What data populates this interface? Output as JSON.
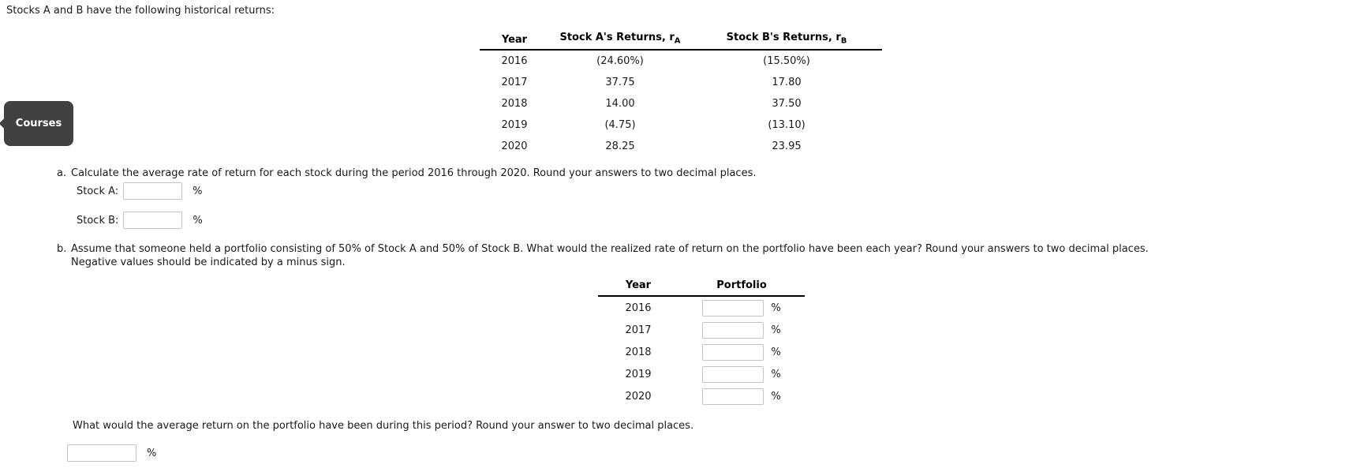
{
  "page": {
    "title": "Stocks A and B have the following historical returns:"
  },
  "courses_tab": {
    "label": "Courses"
  },
  "symbols": {
    "percent": "%"
  },
  "returns_table": {
    "headers": {
      "year": "Year",
      "stock_a_text": "Stock A's Returns, r",
      "stock_a_sub": "A",
      "stock_b_text": "Stock B's Returns, r",
      "stock_b_sub": "B"
    },
    "rows": [
      {
        "year": "2016",
        "a": "(24.60%)",
        "b": "(15.50%)"
      },
      {
        "year": "2017",
        "a": "37.75",
        "b": "17.80"
      },
      {
        "year": "2018",
        "a": "14.00",
        "b": "37.50"
      },
      {
        "year": "2019",
        "a": "(4.75)",
        "b": "(13.10)"
      },
      {
        "year": "2020",
        "a": "28.25",
        "b": "23.95"
      }
    ]
  },
  "part_a": {
    "marker": "a.",
    "prompt": "Calculate the average rate of return for each stock during the period 2016 through 2020. Round your answers to two decimal places.",
    "stock_a_label": "Stock A:",
    "stock_a_value": "",
    "stock_b_label": "Stock B:",
    "stock_b_value": ""
  },
  "part_b": {
    "marker": "b.",
    "prompt_line1": "Assume that someone held a portfolio consisting of 50% of Stock A and 50% of Stock B. What would the realized rate of return on the portfolio have been each year? Round your answers to two decimal places.",
    "prompt_line2": "Negative values should be indicated by a minus sign.",
    "portfolio_table": {
      "headers": {
        "year": "Year",
        "portfolio": "Portfolio"
      },
      "rows": [
        {
          "year": "2016",
          "value": ""
        },
        {
          "year": "2017",
          "value": ""
        },
        {
          "year": "2018",
          "value": ""
        },
        {
          "year": "2019",
          "value": ""
        },
        {
          "year": "2020",
          "value": ""
        }
      ]
    },
    "avg_question": "What would the average return on the portfolio have been during this period? Round your answer to two decimal places.",
    "avg_value": ""
  }
}
